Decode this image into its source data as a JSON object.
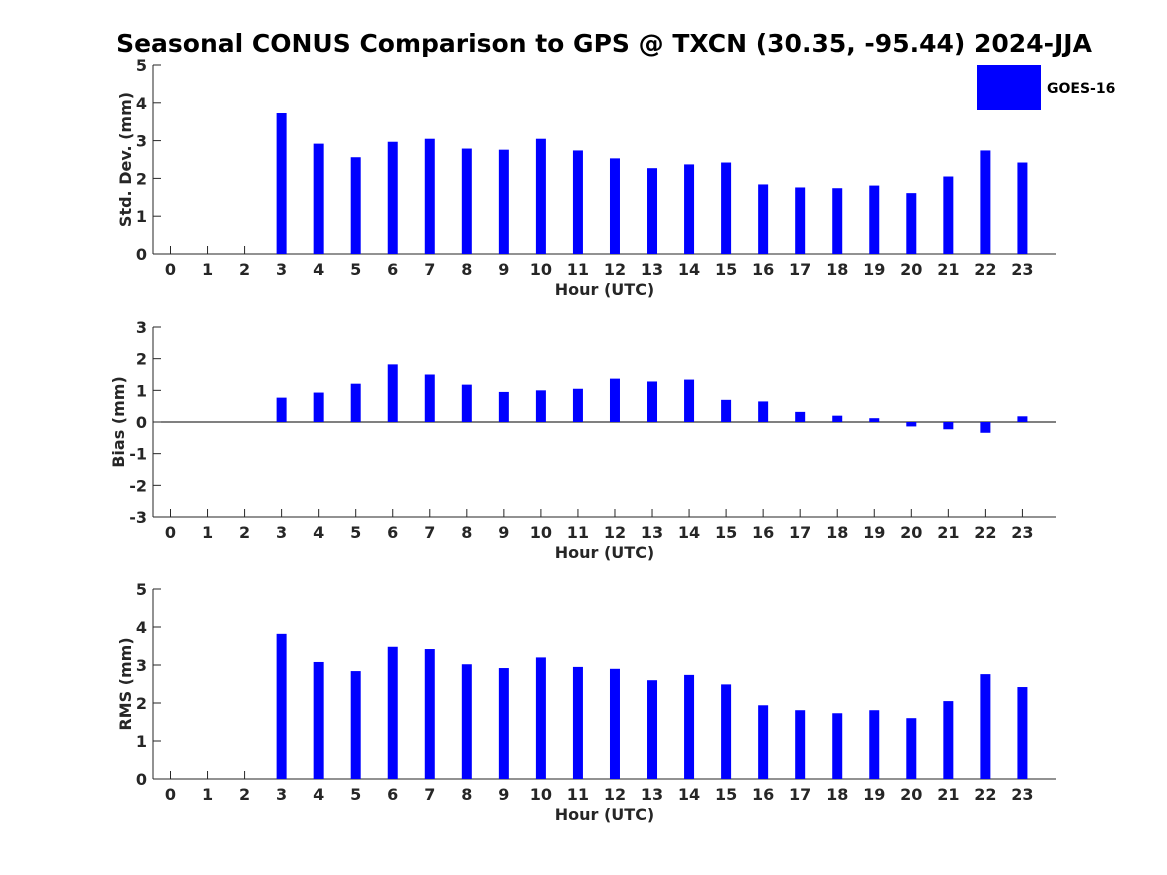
{
  "chart_title": "Seasonal CONUS Comparison to GPS @ TXCN (30.35, -95.44) 2024-JJA",
  "legend": {
    "label": "GOES-16",
    "color": "#0000ff"
  },
  "chart_data": [
    {
      "type": "bar",
      "xlabel": "Hour (UTC)",
      "ylabel": "Std. Dev. (mm)",
      "ylim": [
        0,
        5
      ],
      "yticks": [
        "0",
        "1",
        "2",
        "3",
        "4",
        "5"
      ],
      "categories": [
        "0",
        "1",
        "2",
        "3",
        "4",
        "5",
        "6",
        "7",
        "8",
        "9",
        "10",
        "11",
        "12",
        "13",
        "14",
        "15",
        "16",
        "17",
        "18",
        "19",
        "20",
        "21",
        "22",
        "23"
      ],
      "series": [
        {
          "name": "GOES-16",
          "color": "#0000ff",
          "values": [
            null,
            null,
            null,
            3.73,
            2.92,
            2.56,
            2.97,
            3.05,
            2.79,
            2.76,
            3.05,
            2.74,
            2.53,
            2.27,
            2.37,
            2.42,
            1.84,
            1.76,
            1.74,
            1.81,
            1.61,
            2.05,
            2.74,
            2.42
          ]
        }
      ]
    },
    {
      "type": "bar",
      "xlabel": "Hour (UTC)",
      "ylabel": "Bias (mm)",
      "ylim": [
        -3,
        3
      ],
      "yticks": [
        "-3",
        "-2",
        "-1",
        "0",
        "1",
        "2",
        "3"
      ],
      "categories": [
        "0",
        "1",
        "2",
        "3",
        "4",
        "5",
        "6",
        "7",
        "8",
        "9",
        "10",
        "11",
        "12",
        "13",
        "14",
        "15",
        "16",
        "17",
        "18",
        "19",
        "20",
        "21",
        "22",
        "23"
      ],
      "series": [
        {
          "name": "GOES-16",
          "color": "#0000ff",
          "values": [
            null,
            null,
            null,
            0.77,
            0.93,
            1.21,
            1.82,
            1.5,
            1.18,
            0.95,
            1.0,
            1.05,
            1.37,
            1.28,
            1.34,
            0.7,
            0.65,
            0.32,
            0.2,
            0.12,
            -0.14,
            -0.23,
            -0.34,
            0.18
          ]
        }
      ]
    },
    {
      "type": "bar",
      "xlabel": "Hour (UTC)",
      "ylabel": "RMS (mm)",
      "ylim": [
        0,
        5
      ],
      "yticks": [
        "0",
        "1",
        "2",
        "3",
        "4",
        "5"
      ],
      "categories": [
        "0",
        "1",
        "2",
        "3",
        "4",
        "5",
        "6",
        "7",
        "8",
        "9",
        "10",
        "11",
        "12",
        "13",
        "14",
        "15",
        "16",
        "17",
        "18",
        "19",
        "20",
        "21",
        "22",
        "23"
      ],
      "series": [
        {
          "name": "GOES-16",
          "color": "#0000ff",
          "values": [
            null,
            null,
            null,
            3.82,
            3.08,
            2.84,
            3.48,
            3.42,
            3.02,
            2.92,
            3.2,
            2.95,
            2.9,
            2.6,
            2.74,
            2.49,
            1.94,
            1.81,
            1.73,
            1.81,
            1.6,
            2.05,
            2.76,
            2.42
          ]
        }
      ]
    }
  ]
}
